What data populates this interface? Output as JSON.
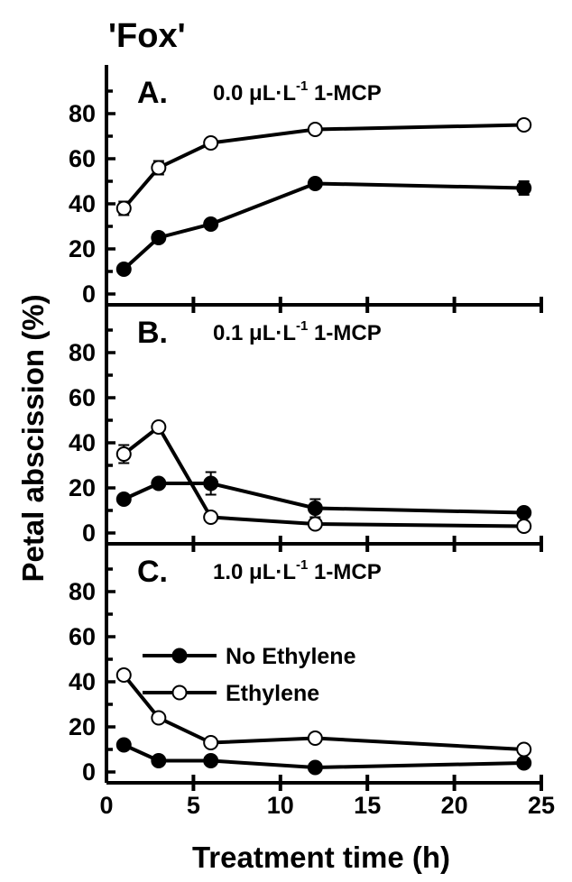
{
  "chart_data": {
    "type": "line",
    "title": "'Fox'",
    "xlabel": "Treatment time (h)",
    "ylabel": "Petal abscission (%)",
    "xlim": [
      0,
      25
    ],
    "ylim": [
      0,
      100
    ],
    "x_ticks": [
      "0",
      "5",
      "10",
      "15",
      "20",
      "25"
    ],
    "y_ticks": [
      "0",
      "20",
      "40",
      "60",
      "80"
    ],
    "grid": false,
    "legend": {
      "placement": "inside panel C, upper-left",
      "entries": [
        {
          "label": "No Ethylene",
          "marker": "filled-circle"
        },
        {
          "label": "Ethylene",
          "marker": "open-circle"
        }
      ]
    },
    "panels": [
      {
        "letter": "A.",
        "dose": "0.0",
        "unit": "μL·L",
        "exponent": "-1",
        "compound": "1-MCP",
        "x": [
          1,
          3,
          6,
          12,
          24
        ],
        "series": [
          {
            "legend_index": 1,
            "values": [
              38,
              56,
              67,
              73,
              75
            ],
            "errors": [
              3,
              3,
              1,
              1,
              1
            ]
          },
          {
            "legend_index": 0,
            "values": [
              11,
              25,
              31,
              49,
              47
            ],
            "errors": [
              1,
              2,
              1,
              1,
              3
            ]
          }
        ]
      },
      {
        "letter": "B.",
        "dose": "0.1",
        "unit": "μL·L",
        "exponent": "-1",
        "compound": "1-MCP",
        "x": [
          1,
          3,
          6,
          12,
          24
        ],
        "series": [
          {
            "legend_index": 1,
            "values": [
              35,
              47,
              7,
              4,
              3
            ],
            "errors": [
              4,
              1,
              1,
              1,
              1
            ]
          },
          {
            "legend_index": 0,
            "values": [
              15,
              22,
              22,
              11,
              9
            ],
            "errors": [
              1,
              1,
              5,
              4,
              1
            ]
          }
        ]
      },
      {
        "letter": "C.",
        "dose": "1.0",
        "unit": "μL·L",
        "exponent": "-1",
        "compound": "1-MCP",
        "x": [
          1,
          3,
          6,
          12,
          24
        ],
        "series": [
          {
            "legend_index": 1,
            "values": [
              43,
              24,
              13,
              15,
              10
            ],
            "errors": [
              1,
              1,
              1,
              1,
              1
            ]
          },
          {
            "legend_index": 0,
            "values": [
              12,
              5,
              5,
              2,
              4
            ],
            "errors": [
              1,
              1,
              1,
              1,
              1
            ]
          }
        ]
      }
    ]
  }
}
